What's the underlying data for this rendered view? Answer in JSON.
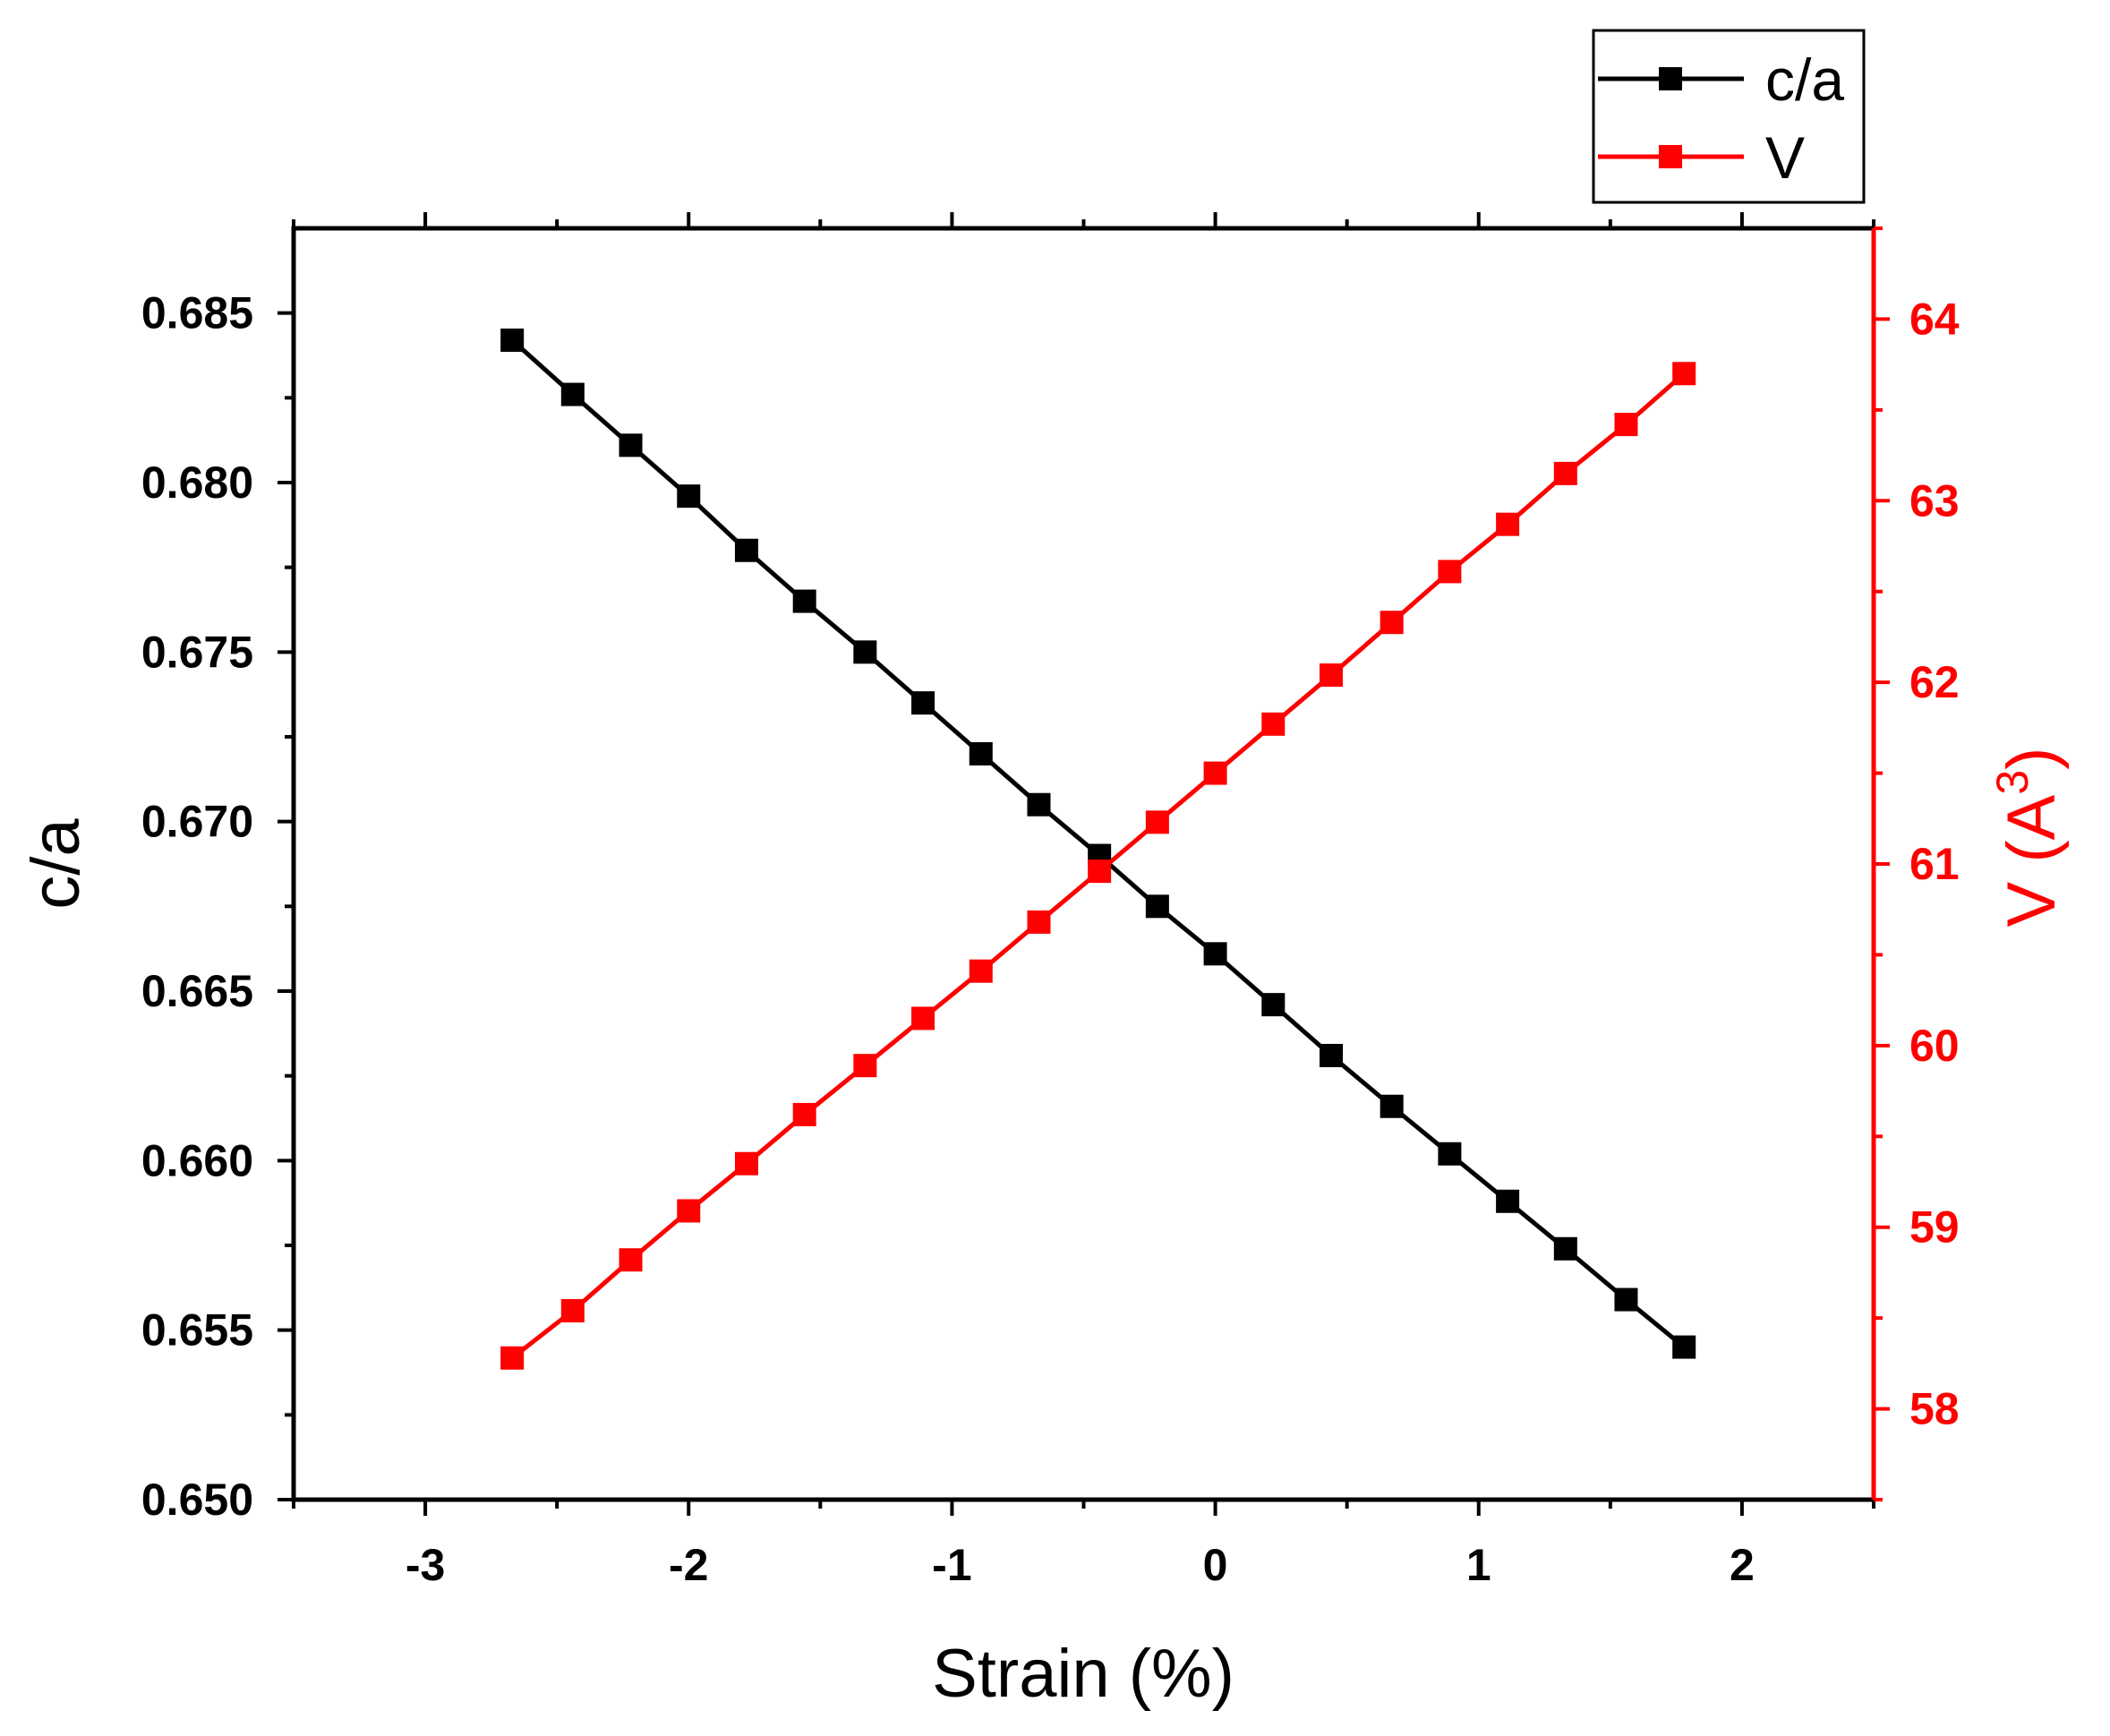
{
  "chart_data": {
    "type": "line",
    "title": "",
    "xlabel": "Strain (%)",
    "ylabel": "c/a",
    "y2label": "V (A",
    "y2label_superscript": "3",
    "y2label_close": ")",
    "xlim": [
      -3.5,
      2.5
    ],
    "ylim": [
      0.65,
      0.6875
    ],
    "y2lim": [
      57.5,
      64.5
    ],
    "x_ticks": [
      -3,
      -2,
      -1,
      0,
      1,
      2
    ],
    "x_tick_labels": [
      "-3",
      "-2",
      "-1",
      "0",
      "1",
      "2"
    ],
    "y_ticks": [
      0.65,
      0.655,
      0.66,
      0.665,
      0.67,
      0.675,
      0.68,
      0.685
    ],
    "y_tick_labels": [
      "0.650",
      "0.655",
      "0.660",
      "0.665",
      "0.670",
      "0.675",
      "0.680",
      "0.685"
    ],
    "y2_ticks": [
      58,
      59,
      60,
      61,
      62,
      63,
      64
    ],
    "y2_tick_labels": [
      "58",
      "59",
      "60",
      "61",
      "62",
      "63",
      "64"
    ],
    "grid": false,
    "legend_position": "top-right outside",
    "x": [
      -2.67,
      -2.44,
      -2.22,
      -2.0,
      -1.78,
      -1.56,
      -1.33,
      -1.11,
      -0.89,
      -0.67,
      -0.44,
      -0.22,
      0.0,
      0.22,
      0.44,
      0.67,
      0.89,
      1.11,
      1.33,
      1.56,
      1.78
    ],
    "series": [
      {
        "name": "c/a",
        "axis": "left",
        "color": "#000000",
        "values": [
          0.6842,
          0.6826,
          0.6811,
          0.6796,
          0.678,
          0.6765,
          0.675,
          0.6735,
          0.672,
          0.6705,
          0.669,
          0.6675,
          0.6661,
          0.6646,
          0.6631,
          0.6616,
          0.6602,
          0.6588,
          0.6574,
          0.6559,
          0.6545
        ]
      },
      {
        "name": "V",
        "axis": "right",
        "color": "#ff0000",
        "values": [
          58.28,
          58.54,
          58.82,
          59.09,
          59.35,
          59.62,
          59.89,
          60.15,
          60.41,
          60.68,
          60.96,
          61.23,
          61.5,
          61.77,
          62.04,
          62.33,
          62.61,
          62.87,
          63.15,
          63.42,
          63.7
        ]
      }
    ]
  }
}
